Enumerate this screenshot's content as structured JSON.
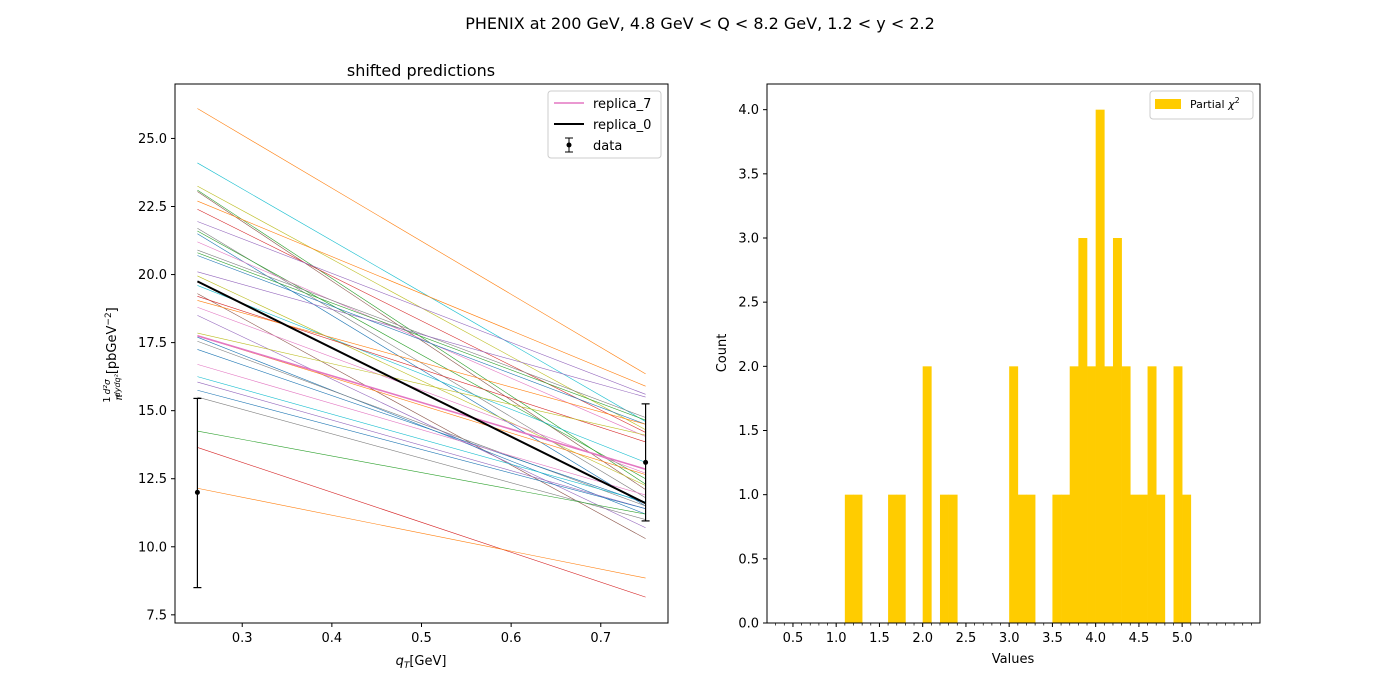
{
  "figure": {
    "suptitle": "PHENIX at 200 GeV, 4.8 GeV < Q < 8.2 GeV, 1.2 < y < 2.2"
  },
  "chart_data": [
    {
      "type": "line",
      "title": "shifted predictions",
      "xlabel": "q_T[GeV]",
      "ylabel": "(1/π) d²σ/(dy dq_T²) [pbGeV⁻²]",
      "xlim": [
        0.225,
        0.775
      ],
      "ylim": [
        7.2,
        27.0
      ],
      "xticks": [
        0.3,
        0.4,
        0.5,
        0.6,
        0.7
      ],
      "yticks": [
        7.5,
        10.0,
        12.5,
        15.0,
        17.5,
        20.0,
        22.5,
        25.0
      ],
      "grid": false,
      "legend_position": "top-right",
      "legend": [
        "replica_7",
        "replica_0",
        "data"
      ],
      "x": [
        0.25,
        0.75
      ],
      "series": [
        {
          "name": "replica_7",
          "color": "#e377c2",
          "values": [
            17.75,
            12.85
          ]
        },
        {
          "name": "replica_0",
          "color": "#000000",
          "values": [
            19.75,
            11.6
          ]
        }
      ],
      "replicas": [
        {
          "color": "#ff7f0e",
          "values": [
            26.1,
            16.35
          ]
        },
        {
          "color": "#17becf",
          "values": [
            24.1,
            14.6
          ]
        },
        {
          "color": "#bcbd22",
          "values": [
            23.25,
            14.3
          ]
        },
        {
          "color": "#2ca02c",
          "values": [
            23.1,
            12.3
          ]
        },
        {
          "color": "#8c564b",
          "values": [
            23.05,
            12.1
          ]
        },
        {
          "color": "#ff7f0e",
          "values": [
            22.7,
            15.9
          ]
        },
        {
          "color": "#d62728",
          "values": [
            22.4,
            14.2
          ]
        },
        {
          "color": "#9467bd",
          "values": [
            21.95,
            15.6
          ]
        },
        {
          "color": "#7f7f7f",
          "values": [
            21.7,
            11.8
          ]
        },
        {
          "color": "#2ca02c",
          "values": [
            21.6,
            12.5
          ]
        },
        {
          "color": "#1f77b4",
          "values": [
            21.5,
            11.5
          ]
        },
        {
          "color": "#e377c2",
          "values": [
            21.2,
            14.05
          ]
        },
        {
          "color": "#7f7f7f",
          "values": [
            20.9,
            14.75
          ]
        },
        {
          "color": "#2ca02c",
          "values": [
            20.8,
            14.65
          ]
        },
        {
          "color": "#1f77b4",
          "values": [
            20.7,
            14.5
          ]
        },
        {
          "color": "#9467bd",
          "values": [
            20.1,
            15.5
          ]
        },
        {
          "color": "#bcbd22",
          "values": [
            19.95,
            12.25
          ]
        },
        {
          "color": "#17becf",
          "values": [
            19.6,
            13.1
          ]
        },
        {
          "color": "#8c564b",
          "values": [
            19.3,
            10.3
          ]
        },
        {
          "color": "#d62728",
          "values": [
            19.2,
            13.85
          ]
        },
        {
          "color": "#ff7f0e",
          "values": [
            19.05,
            14.5
          ]
        },
        {
          "color": "#e377c2",
          "values": [
            18.8,
            12.7
          ]
        },
        {
          "color": "#9467bd",
          "values": [
            18.5,
            10.7
          ]
        },
        {
          "color": "#bcbd22",
          "values": [
            17.85,
            14.1
          ]
        },
        {
          "color": "#ff7f0e",
          "values": [
            17.75,
            12.65
          ]
        },
        {
          "color": "#1f77b4",
          "values": [
            17.7,
            11.2
          ]
        },
        {
          "color": "#7f7f7f",
          "values": [
            17.55,
            11.5
          ]
        },
        {
          "color": "#1f77b4",
          "values": [
            17.25,
            11.6
          ]
        },
        {
          "color": "#e377c2",
          "values": [
            16.7,
            11.9
          ]
        },
        {
          "color": "#17becf",
          "values": [
            16.25,
            11.65
          ]
        },
        {
          "color": "#9467bd",
          "values": [
            16.05,
            11.4
          ]
        },
        {
          "color": "#1f77b4",
          "values": [
            15.75,
            11.4
          ]
        },
        {
          "color": "#7f7f7f",
          "values": [
            15.5,
            11.0
          ]
        },
        {
          "color": "#2ca02c",
          "values": [
            14.25,
            11.2
          ]
        },
        {
          "color": "#d62728",
          "values": [
            13.65,
            8.15
          ]
        },
        {
          "color": "#ff7f0e",
          "values": [
            12.15,
            8.85
          ]
        }
      ],
      "data_points": [
        {
          "x": 0.25,
          "y": 12.0,
          "yerr_low": 8.5,
          "yerr_high": 15.45
        },
        {
          "x": 0.75,
          "y": 13.1,
          "yerr_low": 10.95,
          "yerr_high": 15.25
        }
      ]
    },
    {
      "type": "bar",
      "title": "",
      "xlabel": "Values",
      "ylabel": "Count",
      "legend": [
        "Partial χ²"
      ],
      "legend_position": "top-right",
      "color": "#ffcc00",
      "bin_width": 0.1,
      "xlim": [
        0.2,
        5.9
      ],
      "ylim": [
        0,
        4.2
      ],
      "xticks": [
        0.5,
        1.0,
        1.5,
        2.0,
        2.5,
        3.0,
        3.5,
        4.0,
        4.5,
        5.0
      ],
      "xtick_labels": [
        "0.5",
        "1.0",
        "1.5",
        "2.0",
        "2.5",
        "3.0",
        "3.5",
        "4.0",
        "4.5",
        "5.0"
      ],
      "yticks": [
        0.0,
        0.5,
        1.0,
        1.5,
        2.0,
        2.5,
        3.0,
        3.5,
        4.0
      ],
      "grid": false,
      "bins": [
        {
          "start": 1.1,
          "count": 1
        },
        {
          "start": 1.2,
          "count": 1
        },
        {
          "start": 1.6,
          "count": 1
        },
        {
          "start": 1.7,
          "count": 1
        },
        {
          "start": 2.0,
          "count": 2
        },
        {
          "start": 2.2,
          "count": 1
        },
        {
          "start": 2.3,
          "count": 1
        },
        {
          "start": 3.0,
          "count": 2
        },
        {
          "start": 3.1,
          "count": 1
        },
        {
          "start": 3.2,
          "count": 1
        },
        {
          "start": 3.5,
          "count": 1
        },
        {
          "start": 3.6,
          "count": 1
        },
        {
          "start": 3.7,
          "count": 2
        },
        {
          "start": 3.8,
          "count": 3
        },
        {
          "start": 3.9,
          "count": 2
        },
        {
          "start": 4.0,
          "count": 4
        },
        {
          "start": 4.1,
          "count": 2
        },
        {
          "start": 4.2,
          "count": 3
        },
        {
          "start": 4.3,
          "count": 2
        },
        {
          "start": 4.4,
          "count": 1
        },
        {
          "start": 4.5,
          "count": 1
        },
        {
          "start": 4.6,
          "count": 2
        },
        {
          "start": 4.7,
          "count": 1
        },
        {
          "start": 4.9,
          "count": 2
        },
        {
          "start": 5.0,
          "count": 1
        }
      ]
    }
  ]
}
